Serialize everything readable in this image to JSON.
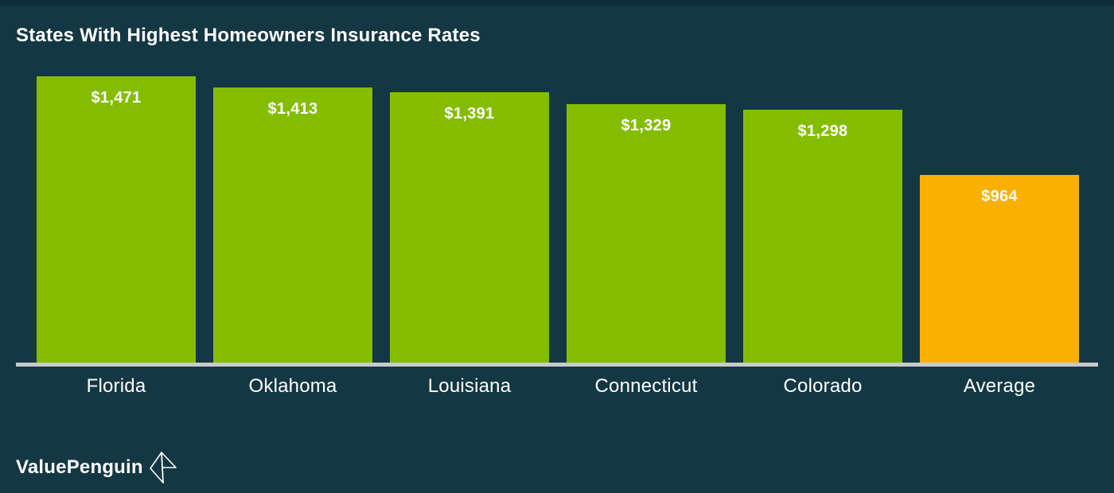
{
  "title": "States With Highest Homeowners Insurance Rates",
  "chart_data": {
    "type": "bar",
    "title": "States With Highest Homeowners Insurance Rates",
    "categories": [
      "Florida",
      "Oklahoma",
      "Louisiana",
      "Connecticut",
      "Colorado",
      "Average"
    ],
    "values": [
      1471,
      1413,
      1391,
      1329,
      1298,
      964
    ],
    "display_values": [
      "$1,471",
      "$1,413",
      "$1,391",
      "$1,329",
      "$1,298",
      "$964"
    ],
    "bar_colors": [
      "#84bd00",
      "#84bd00",
      "#84bd00",
      "#84bd00",
      "#84bd00",
      "#f9b000"
    ],
    "xlabel": "",
    "ylabel": "",
    "ylim": [
      0,
      1471
    ],
    "grid": false,
    "legend": null,
    "value_labels_inside_bars": true,
    "highlight_category": "Average"
  },
  "colors": {
    "background": "#143744",
    "bar_green": "#84bd00",
    "bar_orange": "#f9b000",
    "axis_line": "#c8cbcb",
    "text": "#ffffff"
  },
  "branding": {
    "logo_text": "ValuePenguin"
  }
}
